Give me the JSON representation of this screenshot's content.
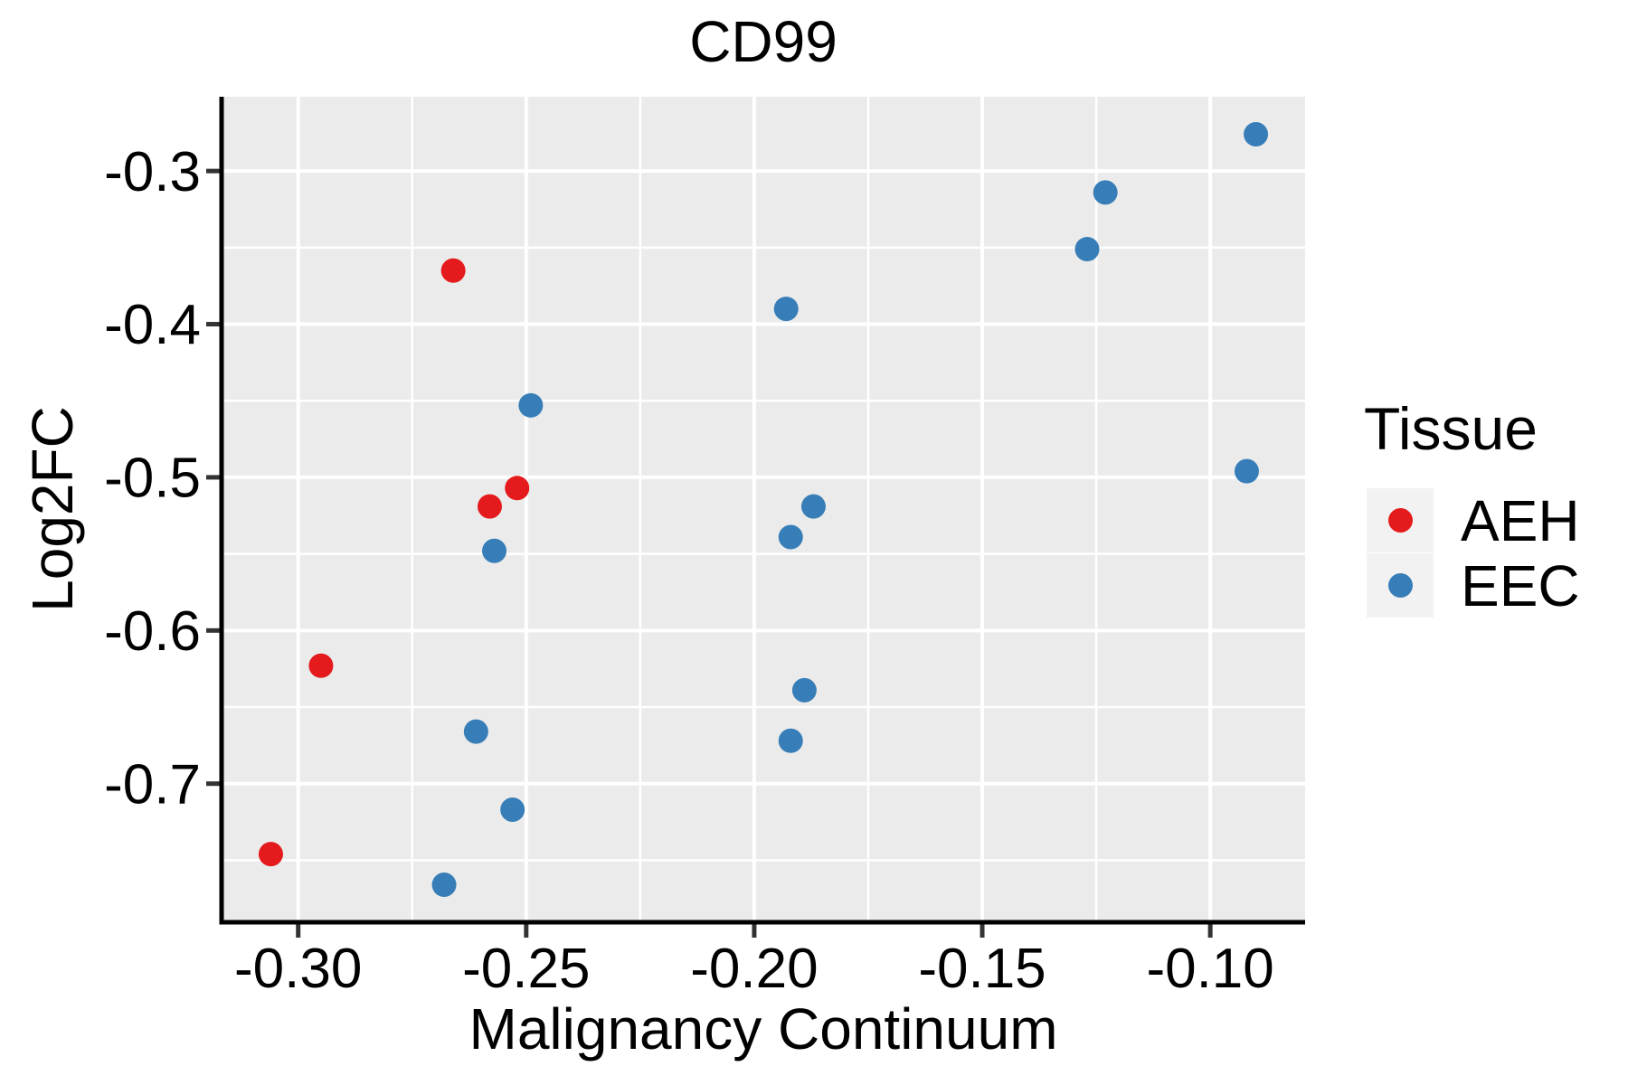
{
  "title": "CD99",
  "axes": {
    "x": {
      "label": "Malignancy Continuum",
      "range": [
        -0.3168,
        -0.0792
      ],
      "ticks": [
        -0.3,
        -0.25,
        -0.2,
        -0.15,
        -0.1
      ],
      "tick_labels": [
        "-0.30",
        "-0.25",
        "-0.20",
        "-0.15",
        "-0.10"
      ],
      "minor_gridlines": [
        -0.275,
        -0.225,
        -0.175,
        -0.125
      ]
    },
    "y": {
      "label": "Log2FC",
      "range": [
        -0.7905,
        -0.2515
      ],
      "ticks": [
        -0.3,
        -0.4,
        -0.5,
        -0.6,
        -0.7
      ],
      "tick_labels": [
        "-0.3",
        "-0.4",
        "-0.5",
        "-0.6",
        "-0.7"
      ],
      "minor_gridlines": [
        -0.35,
        -0.45,
        -0.55,
        -0.65,
        -0.75
      ]
    }
  },
  "legend": {
    "title": "Tissue",
    "position": "right",
    "entries": [
      {
        "label": "AEH",
        "color": "#E41A1C"
      },
      {
        "label": "EEC",
        "color": "#377EB8"
      }
    ]
  },
  "colors": {
    "panel_background": "#EBEBEB",
    "gridline": "#FFFFFF",
    "axis_line": "#000000",
    "tick_mark": "#333333",
    "text": "#000000",
    "legend_key_background": "#F2F2F2",
    "aeh": "#E41A1C",
    "eec": "#377EB8"
  },
  "chart_data": {
    "type": "scatter",
    "title": "CD99",
    "xlabel": "Malignancy Continuum",
    "ylabel": "Log2FC",
    "xlim": [
      -0.3168,
      -0.0792
    ],
    "ylim": [
      -0.7905,
      -0.2515
    ],
    "grid": "major+minor",
    "legend_title": "Tissue",
    "legend_position": "right",
    "point_radius_px": 13.5,
    "series": [
      {
        "name": "AEH",
        "color": "#E41A1C",
        "points": [
          [
            -0.266,
            -0.365
          ],
          [
            -0.252,
            -0.507
          ],
          [
            -0.258,
            -0.519
          ],
          [
            -0.295,
            -0.623
          ],
          [
            -0.306,
            -0.746
          ]
        ]
      },
      {
        "name": "EEC",
        "color": "#377EB8",
        "points": [
          [
            -0.09,
            -0.276
          ],
          [
            -0.123,
            -0.314
          ],
          [
            -0.127,
            -0.351
          ],
          [
            -0.193,
            -0.39
          ],
          [
            -0.249,
            -0.453
          ],
          [
            -0.092,
            -0.496
          ],
          [
            -0.187,
            -0.519
          ],
          [
            -0.192,
            -0.539
          ],
          [
            -0.257,
            -0.548
          ],
          [
            -0.189,
            -0.639
          ],
          [
            -0.261,
            -0.666
          ],
          [
            -0.192,
            -0.672
          ],
          [
            -0.253,
            -0.717
          ],
          [
            -0.268,
            -0.766
          ]
        ]
      }
    ]
  }
}
